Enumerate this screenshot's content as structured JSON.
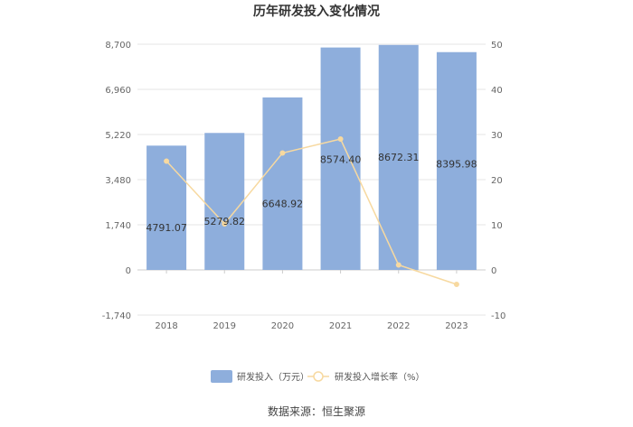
{
  "chart_data": {
    "type": "bar",
    "title": "历年研发投入变化情况",
    "categories": [
      "2018",
      "2019",
      "2020",
      "2021",
      "2022",
      "2023"
    ],
    "series": [
      {
        "name": "研发投入（万元）",
        "type": "bar",
        "axis": "left",
        "values": [
          4791.07,
          5279.82,
          6648.92,
          8574.4,
          8672.31,
          8395.98
        ],
        "labels": [
          "4791.07",
          "5279.82",
          "6648.92",
          "8574.40",
          "8672.31",
          "8395.98"
        ],
        "color": "#8eaedc"
      },
      {
        "name": "研发投入增长率（%）",
        "type": "line",
        "axis": "right",
        "values": [
          24.1,
          10.2,
          25.9,
          29.0,
          1.1,
          -3.2
        ],
        "color": "#f7d9a0"
      }
    ],
    "y_left": {
      "min": -1740,
      "max": 8700,
      "ticks": [
        "8,700",
        "6,960",
        "5,220",
        "3,480",
        "1,740",
        "0",
        "-1,740"
      ]
    },
    "y_right": {
      "min": -10,
      "max": 50,
      "ticks": [
        "50",
        "40",
        "30",
        "20",
        "10",
        "0",
        "-10"
      ]
    },
    "grid": true,
    "legend_position": "bottom"
  },
  "footer": {
    "source": "数据来源：恒生聚源"
  }
}
